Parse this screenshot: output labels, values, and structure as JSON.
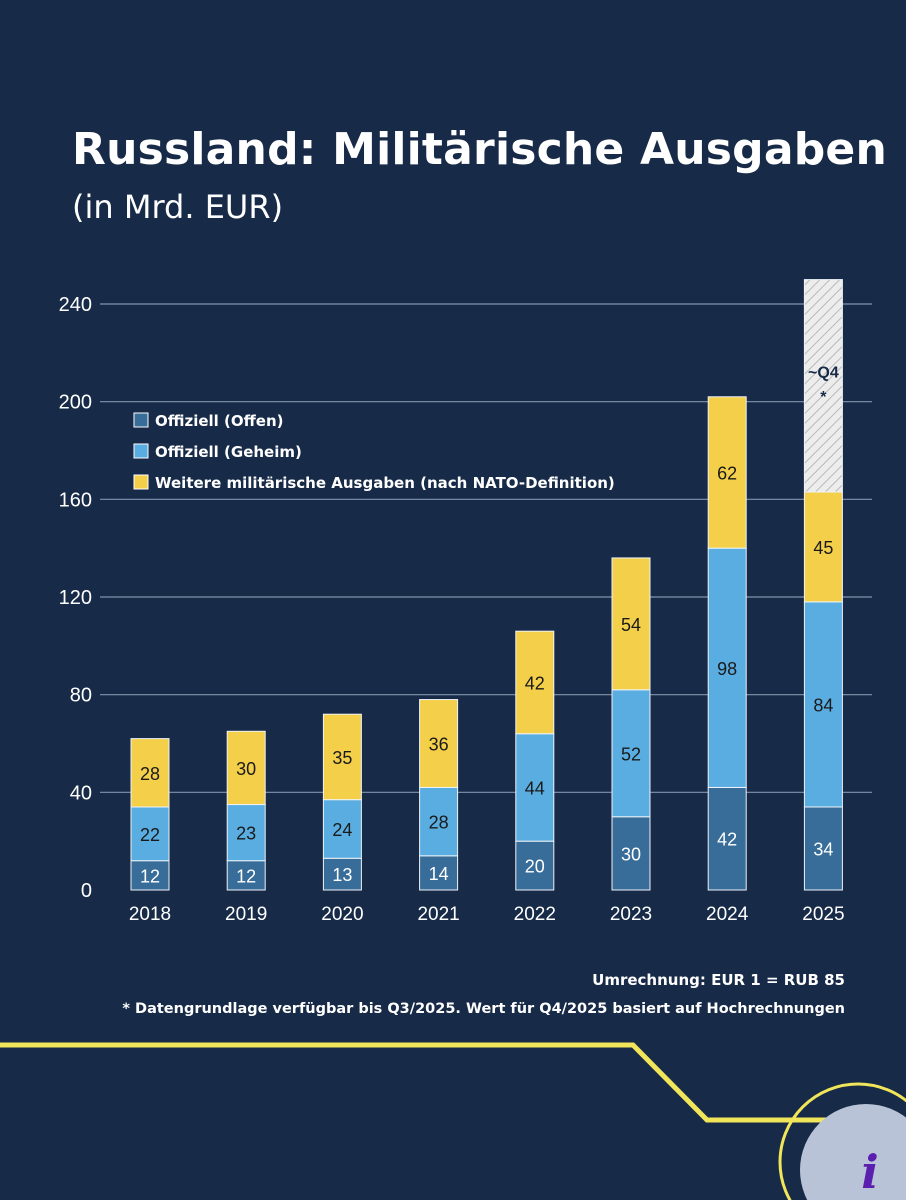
{
  "header": {
    "title": "Russland: Militärische Ausgaben",
    "subtitle": "(in Mrd. EUR)"
  },
  "footer": {
    "conversion": "Umrechnung: EUR 1 = RUB 85",
    "footnote": "* Datengrundlage verfügbar bis Q3/2025. Wert für Q4/2025 basiert auf Hochrechnungen"
  },
  "chart_data": {
    "type": "bar",
    "stacked": true,
    "categories": [
      "2018",
      "2019",
      "2020",
      "2021",
      "2022",
      "2023",
      "2024",
      "2025"
    ],
    "series": [
      {
        "name": "Offiziell (Offen)",
        "color": "#386d99",
        "values": [
          12,
          12,
          13,
          14,
          20,
          30,
          42,
          34
        ]
      },
      {
        "name": "Offiziell (Geheim)",
        "color": "#5aade0",
        "values": [
          22,
          23,
          24,
          28,
          44,
          52,
          98,
          84
        ]
      },
      {
        "name": "Weitere militärische Ausgaben (nach NATO-Definition)",
        "color": "#f4d04a",
        "values": [
          28,
          30,
          35,
          36,
          42,
          54,
          62,
          45
        ]
      }
    ],
    "projection": {
      "category": "2025",
      "label_line1": "~Q4",
      "label_line2": "*",
      "total": 250
    },
    "yticks": [
      0,
      40,
      80,
      120,
      160,
      200,
      240
    ],
    "ylim": [
      0,
      250
    ],
    "grid": true,
    "legend_position": "top-left"
  }
}
